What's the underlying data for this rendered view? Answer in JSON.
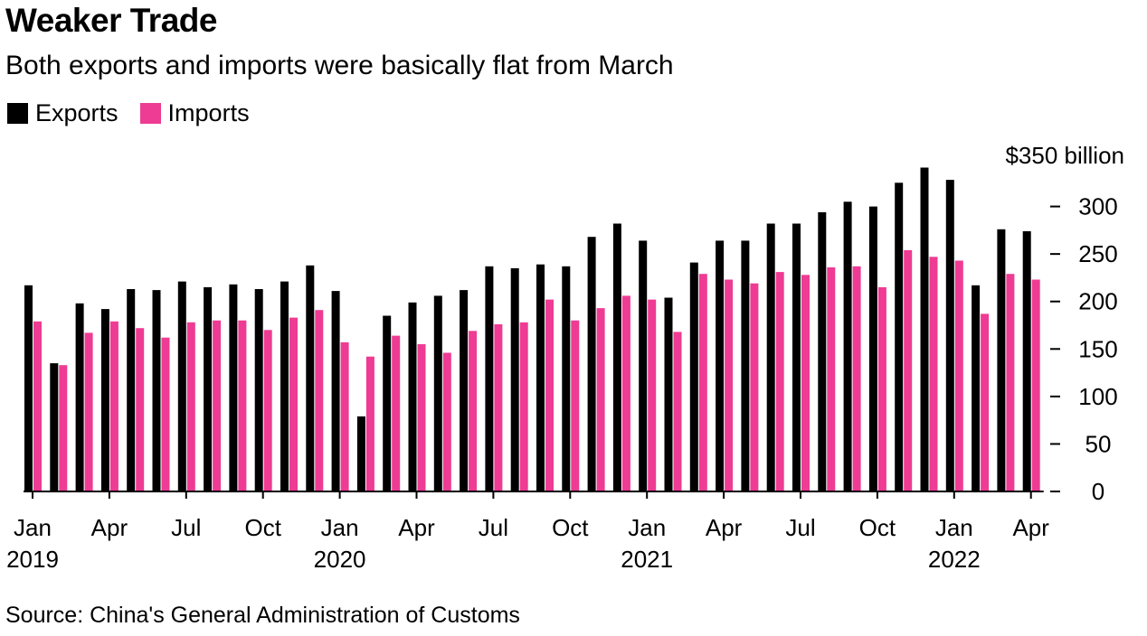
{
  "title": "Weaker Trade",
  "subtitle": "Both exports and imports were basically flat from March",
  "source": "Source: China's General Administration of Customs",
  "colors": {
    "exports": "#000000",
    "imports": "#ee3b93"
  },
  "chart_data": {
    "type": "bar",
    "title": "Weaker Trade",
    "subtitle": "Both exports and imports were basically flat from March",
    "y_unit_label": "$350 billion",
    "ylim": [
      0,
      350
    ],
    "yticks": [
      0,
      50,
      100,
      150,
      200,
      250,
      300
    ],
    "grid": false,
    "legend_position": "top-left",
    "categories": [
      "Jan 2019",
      "Feb 2019",
      "Mar 2019",
      "Apr 2019",
      "May 2019",
      "Jun 2019",
      "Jul 2019",
      "Aug 2019",
      "Sep 2019",
      "Oct 2019",
      "Nov 2019",
      "Dec 2019",
      "Jan 2020",
      "Feb 2020",
      "Mar 2020",
      "Apr 2020",
      "May 2020",
      "Jun 2020",
      "Jul 2020",
      "Aug 2020",
      "Sep 2020",
      "Oct 2020",
      "Nov 2020",
      "Dec 2020",
      "Jan 2021",
      "Feb 2021",
      "Mar 2021",
      "Apr 2021",
      "May 2021",
      "Jun 2021",
      "Jul 2021",
      "Aug 2021",
      "Sep 2021",
      "Oct 2021",
      "Nov 2021",
      "Dec 2021",
      "Jan 2022",
      "Feb 2022",
      "Mar 2022",
      "Apr 2022"
    ],
    "x_tick_labels": [
      {
        "index": 0,
        "month": "Jan",
        "year": "2019"
      },
      {
        "index": 3,
        "month": "Apr",
        "year": ""
      },
      {
        "index": 6,
        "month": "Jul",
        "year": ""
      },
      {
        "index": 9,
        "month": "Oct",
        "year": ""
      },
      {
        "index": 12,
        "month": "Jan",
        "year": "2020"
      },
      {
        "index": 15,
        "month": "Apr",
        "year": ""
      },
      {
        "index": 18,
        "month": "Jul",
        "year": ""
      },
      {
        "index": 21,
        "month": "Oct",
        "year": ""
      },
      {
        "index": 24,
        "month": "Jan",
        "year": "2021"
      },
      {
        "index": 27,
        "month": "Apr",
        "year": ""
      },
      {
        "index": 30,
        "month": "Jul",
        "year": ""
      },
      {
        "index": 33,
        "month": "Oct",
        "year": ""
      },
      {
        "index": 36,
        "month": "Jan",
        "year": "2022"
      },
      {
        "index": 39,
        "month": "Apr",
        "year": ""
      }
    ],
    "series": [
      {
        "name": "Exports",
        "values": [
          217,
          135,
          198,
          192,
          213,
          212,
          221,
          215,
          218,
          213,
          221,
          238,
          211,
          79,
          185,
          199,
          206,
          212,
          237,
          235,
          239,
          237,
          268,
          282,
          264,
          204,
          241,
          264,
          264,
          282,
          282,
          294,
          305,
          300,
          325,
          341,
          328,
          217,
          276,
          274
        ]
      },
      {
        "name": "Imports",
        "values": [
          179,
          133,
          167,
          179,
          172,
          162,
          178,
          180,
          180,
          170,
          183,
          191,
          157,
          142,
          164,
          155,
          146,
          169,
          176,
          178,
          202,
          180,
          193,
          206,
          202,
          168,
          229,
          223,
          219,
          231,
          228,
          236,
          237,
          215,
          254,
          247,
          243,
          187,
          229,
          223
        ]
      }
    ]
  }
}
